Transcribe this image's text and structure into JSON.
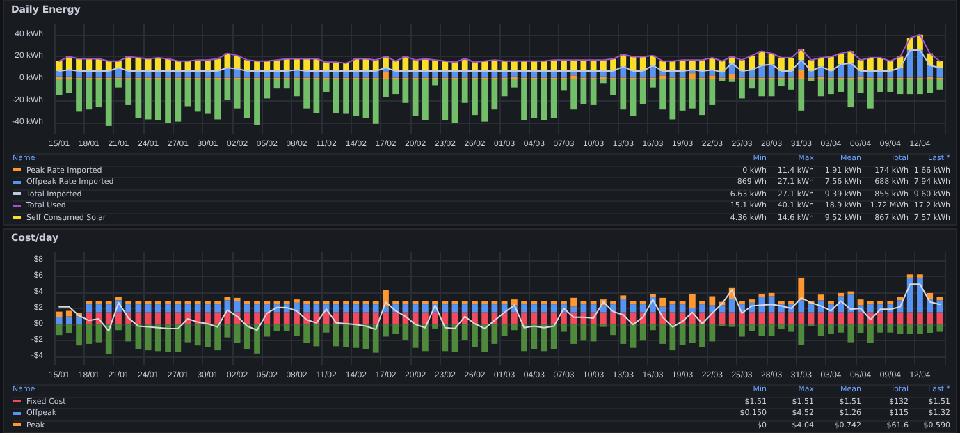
{
  "chart_data": [
    {
      "type": "bar",
      "title": "Daily Energy",
      "stacked": true,
      "grid": true,
      "legend": "bottom",
      "marker": "none",
      "categories": [
        "15/01",
        null,
        null,
        "18/01",
        null,
        null,
        "21/01",
        null,
        null,
        "24/01",
        null,
        null,
        "27/01",
        null,
        null,
        "30/01",
        null,
        null,
        "02/02",
        null,
        null,
        "05/02",
        null,
        null,
        "08/02",
        null,
        null,
        "11/02",
        null,
        null,
        "14/02",
        null,
        null,
        "17/02",
        null,
        null,
        "20/02",
        null,
        null,
        "23/02",
        null,
        null,
        "26/02",
        null,
        null,
        "01/03",
        null,
        null,
        "04/03",
        null,
        null,
        "07/03",
        null,
        null,
        "10/03",
        null,
        null,
        "13/03",
        null,
        null,
        "16/03",
        null,
        null,
        "19/03",
        null,
        null,
        "22/03",
        null,
        null,
        "25/03",
        null,
        null,
        "28/03",
        null,
        null,
        "31/03",
        null,
        null,
        "03/04",
        null,
        null,
        "06/04",
        null,
        null,
        "09/04",
        null,
        null,
        "12/04",
        null,
        null
      ],
      "ylim": [
        -50,
        50
      ],
      "yticks": [
        {
          "value": -40,
          "label": "-40 kWh"
        },
        {
          "value": -20,
          "label": "-20 kWh"
        },
        {
          "value": 0,
          "label": "0 kWh"
        },
        {
          "value": 20,
          "label": "20 kWh"
        },
        {
          "value": 40,
          "label": "40 kWh"
        }
      ],
      "series": [
        {
          "name": "Peak Rate Imported",
          "color": "#ff9830",
          "values": [
            2,
            2,
            1,
            1,
            1,
            1,
            1,
            1,
            1,
            1,
            1,
            1,
            1,
            1,
            1,
            1,
            1,
            1,
            1,
            1,
            1,
            1,
            1,
            1,
            1,
            1,
            1,
            1,
            1,
            1,
            1,
            1,
            1,
            6,
            1,
            1,
            1,
            1,
            1,
            1,
            1,
            1,
            1,
            1,
            1,
            1,
            2,
            1,
            1,
            1,
            1,
            1,
            3,
            1,
            1,
            2,
            1,
            1,
            1,
            1,
            1,
            3,
            1,
            1,
            5,
            1,
            3,
            1,
            4,
            1,
            1,
            1,
            1,
            1,
            1,
            8,
            1,
            2,
            1,
            1,
            1,
            2,
            1,
            1,
            1,
            1,
            1,
            1,
            2,
            1
          ]
        },
        {
          "name": "Offpeak Rate Imported",
          "color": "#5794f2",
          "values": [
            5,
            6,
            6,
            6,
            6,
            6,
            9,
            6,
            6,
            6,
            6,
            6,
            6,
            6,
            6,
            6,
            6,
            9,
            8,
            6,
            6,
            6,
            6,
            6,
            7,
            6,
            6,
            6,
            6,
            6,
            6,
            6,
            6,
            4,
            6,
            6,
            6,
            6,
            6,
            6,
            6,
            6,
            6,
            6,
            6,
            6,
            5,
            6,
            6,
            6,
            6,
            6,
            4,
            6,
            6,
            5,
            6,
            10,
            6,
            6,
            11,
            4,
            6,
            6,
            3,
            6,
            5,
            5,
            10,
            6,
            7,
            11,
            12,
            6,
            6,
            9,
            6,
            9,
            6,
            12,
            13,
            5,
            6,
            6,
            6,
            9,
            25,
            25,
            10,
            9
          ]
        },
        {
          "name": "Total Imported",
          "type": "line",
          "color": "#c0c8e0",
          "values": [
            7,
            8,
            7,
            7,
            7,
            7,
            10,
            7,
            7,
            7,
            7,
            7,
            7,
            7,
            7,
            7,
            7,
            10,
            9,
            7,
            7,
            7,
            7,
            7,
            8,
            7,
            7,
            7,
            7,
            7,
            7,
            7,
            7,
            10,
            7,
            7,
            7,
            7,
            7,
            7,
            7,
            7,
            7,
            7,
            7,
            7,
            7,
            7,
            7,
            7,
            7,
            7,
            7,
            7,
            7,
            7,
            7,
            11,
            7,
            7,
            12,
            7,
            7,
            7,
            8,
            7,
            8,
            6,
            14,
            7,
            8,
            12,
            13,
            7,
            7,
            17,
            7,
            11,
            7,
            13,
            14,
            7,
            7,
            7,
            7,
            10,
            26,
            26,
            12,
            10
          ]
        },
        {
          "name": "Total Used",
          "type": "line",
          "color": "#a352cc",
          "values": [
            16,
            20,
            18,
            18,
            18,
            16,
            16,
            20,
            19,
            18,
            19,
            18,
            16,
            16,
            17,
            17,
            18,
            23,
            21,
            17,
            16,
            16,
            17,
            18,
            18,
            18,
            18,
            15,
            15,
            14,
            18,
            18,
            17,
            20,
            16,
            20,
            17,
            18,
            17,
            16,
            15,
            18,
            15,
            16,
            17,
            16,
            16,
            16,
            16,
            16,
            17,
            17,
            17,
            17,
            17,
            17,
            18,
            22,
            20,
            20,
            21,
            16,
            16,
            17,
            17,
            17,
            19,
            16,
            20,
            17,
            21,
            25,
            23,
            19,
            19,
            27,
            17,
            19,
            20,
            23,
            25,
            17,
            19,
            19,
            16,
            20,
            37,
            40,
            23,
            16
          ]
        },
        {
          "name": "Self Consumed Solar",
          "color": "#fade2a",
          "values": [
            9,
            12,
            11,
            11,
            11,
            9,
            6,
            13,
            12,
            11,
            12,
            11,
            9,
            9,
            10,
            10,
            11,
            13,
            12,
            10,
            9,
            9,
            10,
            11,
            10,
            11,
            11,
            8,
            8,
            7,
            11,
            11,
            10,
            10,
            9,
            13,
            10,
            11,
            10,
            9,
            8,
            11,
            8,
            9,
            10,
            9,
            9,
            9,
            9,
            9,
            10,
            10,
            10,
            10,
            10,
            10,
            11,
            11,
            13,
            13,
            9,
            9,
            9,
            10,
            9,
            10,
            11,
            10,
            6,
            10,
            13,
            13,
            10,
            12,
            12,
            10,
            10,
            8,
            13,
            10,
            11,
            10,
            12,
            12,
            9,
            10,
            11,
            14,
            11,
            6
          ]
        },
        {
          "color": "#73bf69",
          "values": [
            -15,
            -13,
            -30,
            -28,
            -26,
            -43,
            -8,
            -24,
            -36,
            -37,
            -38,
            -40,
            -39,
            -25,
            -30,
            -32,
            -37,
            -19,
            -27,
            -36,
            -42,
            -18,
            -9,
            -9,
            -16,
            -27,
            -31,
            -12,
            -31,
            -32,
            -34,
            -36,
            -41,
            -17,
            -14,
            -22,
            -34,
            -38,
            -6,
            -38,
            -40,
            -22,
            -33,
            -39,
            -28,
            -16,
            -8,
            -38,
            -36,
            -38,
            -36,
            -11,
            -28,
            -23,
            -24,
            -4,
            -15,
            -28,
            -34,
            -23,
            -8,
            -28,
            -37,
            -29,
            -27,
            -33,
            -24,
            -2,
            -3,
            -18,
            -9,
            -16,
            -16,
            -7,
            -10,
            -29,
            -2,
            -16,
            -14,
            -12,
            -26,
            -13,
            -27,
            -12,
            -12,
            -14,
            -14,
            -14,
            -13,
            -10
          ]
        }
      ],
      "annotations": [
        "Name",
        "Min",
        "Max",
        "Mean",
        "Total",
        "Last *",
        "0 kWh",
        "11.4 kWh",
        "1.91 kWh",
        "174 kWh",
        "1.66 kWh",
        "869 Wh",
        "27.1 kWh",
        "7.56 kWh",
        "688 kWh",
        "7.94 kWh",
        "6.63 kWh",
        "27.1 kWh",
        "9.39 kWh",
        "855 kWh",
        "9.60 kWh",
        "15.1 kWh",
        "40.1 kWh",
        "18.9 kWh",
        "1.72 MWh",
        "17.2 kWh",
        "4.36 kWh",
        "14.6 kWh",
        "9.52 kWh",
        "867 kWh",
        "7.57 kWh"
      ]
    },
    {
      "type": "bar",
      "title": "Cost/day",
      "stacked": true,
      "grid": true,
      "legend": "bottom",
      "marker": "none",
      "categories": [
        "15/01",
        null,
        null,
        "18/01",
        null,
        null,
        "21/01",
        null,
        null,
        "24/01",
        null,
        null,
        "27/01",
        null,
        null,
        "30/01",
        null,
        null,
        "02/02",
        null,
        null,
        "05/02",
        null,
        null,
        "08/02",
        null,
        null,
        "11/02",
        null,
        null,
        "14/02",
        null,
        null,
        "17/02",
        null,
        null,
        "20/02",
        null,
        null,
        "23/02",
        null,
        null,
        "26/02",
        null,
        null,
        "01/03",
        null,
        null,
        "04/03",
        null,
        null,
        "07/03",
        null,
        null,
        "10/03",
        null,
        null,
        "13/03",
        null,
        null,
        "16/03",
        null,
        null,
        "19/03",
        null,
        null,
        "22/03",
        null,
        null,
        "25/03",
        null,
        null,
        "28/03",
        null,
        null,
        "31/03",
        null,
        null,
        "03/04",
        null,
        null,
        "06/04",
        null,
        null,
        "09/04",
        null,
        null,
        "12/04",
        null,
        null
      ],
      "ylim": [
        -5,
        9
      ],
      "yticks": [
        {
          "value": -4,
          "label": "-$4"
        },
        {
          "value": -2,
          "label": "-$2"
        },
        {
          "value": 0,
          "label": "$0"
        },
        {
          "value": 2,
          "label": "$2"
        },
        {
          "value": 4,
          "label": "$4"
        },
        {
          "value": 6,
          "label": "$6"
        },
        {
          "value": 8,
          "label": "$8"
        }
      ],
      "series": [
        {
          "name": "Fixed Cost",
          "color": "#f2495c",
          "values": [
            null,
            null,
            null,
            1.51,
            1.51,
            1.51,
            1.51,
            1.51,
            1.51,
            1.51,
            1.51,
            1.51,
            1.51,
            1.51,
            1.51,
            1.51,
            1.51,
            1.51,
            1.51,
            1.51,
            1.51,
            1.51,
            1.51,
            1.51,
            1.51,
            1.51,
            1.51,
            1.51,
            1.51,
            1.51,
            1.51,
            1.51,
            1.51,
            1.51,
            1.51,
            1.51,
            1.51,
            1.51,
            1.51,
            1.51,
            1.51,
            1.51,
            1.51,
            1.51,
            1.51,
            1.51,
            1.51,
            1.51,
            1.51,
            1.51,
            1.51,
            1.51,
            1.51,
            1.51,
            1.51,
            1.51,
            1.51,
            1.51,
            1.51,
            1.51,
            1.51,
            1.51,
            1.51,
            1.51,
            1.51,
            1.51,
            1.51,
            1.51,
            1.51,
            1.51,
            1.51,
            1.51,
            1.51,
            1.51,
            1.51,
            1.51,
            1.51,
            1.51,
            1.51,
            1.51,
            1.51,
            1.51,
            1.51,
            1.51,
            1.51,
            1.51,
            1.51,
            1.51,
            1.51,
            1.51
          ]
        },
        {
          "name": "Offpeak",
          "color": "#5794f2",
          "values": [
            0.9,
            1.0,
            1.0,
            1.0,
            1.0,
            1.0,
            1.5,
            1.0,
            1.0,
            1.0,
            1.0,
            1.0,
            1.0,
            1.0,
            1.0,
            1.0,
            1.0,
            1.5,
            1.4,
            1.0,
            1.0,
            1.0,
            1.0,
            1.0,
            1.2,
            1.0,
            1.0,
            1.0,
            1.0,
            1.0,
            1.0,
            1.0,
            1.0,
            0.7,
            1.0,
            1.0,
            1.0,
            1.0,
            1.0,
            1.0,
            1.0,
            1.0,
            1.0,
            1.0,
            1.0,
            1.0,
            0.9,
            1.0,
            1.0,
            1.0,
            1.0,
            1.0,
            0.7,
            1.0,
            1.0,
            0.9,
            1.0,
            1.7,
            1.0,
            1.0,
            1.9,
            0.7,
            1.0,
            1.0,
            0.5,
            1.0,
            0.9,
            0.9,
            1.7,
            1.0,
            1.2,
            1.9,
            2.0,
            1.0,
            1.0,
            1.5,
            1.0,
            1.5,
            1.0,
            2.0,
            2.2,
            0.9,
            1.0,
            1.0,
            1.0,
            1.5,
            4.3,
            4.3,
            1.7,
            1.5
          ]
        },
        {
          "name": "Peak",
          "color": "#ff9830",
          "values": [
            0.7,
            0.7,
            0.4,
            0.4,
            0.4,
            0.4,
            0.4,
            0.4,
            0.4,
            0.4,
            0.4,
            0.4,
            0.4,
            0.4,
            0.4,
            0.4,
            0.4,
            0.4,
            0.4,
            0.4,
            0.4,
            0.4,
            0.4,
            0.4,
            0.4,
            0.4,
            0.4,
            0.4,
            0.4,
            0.4,
            0.4,
            0.4,
            0.4,
            2.1,
            0.4,
            0.4,
            0.4,
            0.4,
            0.4,
            0.4,
            0.4,
            0.4,
            0.4,
            0.4,
            0.4,
            0.4,
            0.7,
            0.4,
            0.4,
            0.4,
            0.4,
            0.4,
            1.1,
            0.4,
            0.4,
            0.7,
            0.4,
            0.4,
            0.4,
            0.4,
            0.4,
            1.1,
            0.4,
            0.4,
            1.8,
            0.4,
            1.1,
            0.4,
            1.4,
            0.4,
            0.4,
            0.4,
            0.4,
            0.4,
            0.4,
            2.8,
            0.4,
            0.7,
            0.4,
            0.4,
            0.4,
            0.7,
            0.4,
            0.4,
            0.4,
            0.4,
            0.4,
            0.4,
            0.7,
            0.4
          ]
        },
        {
          "type": "line",
          "color": "#d8d9e0",
          "values": [
            2.2,
            2.2,
            1.1,
            0.5,
            0.7,
            -0.8,
            2.7,
            0.8,
            -0.2,
            -0.3,
            -0.4,
            -0.5,
            -0.5,
            0.7,
            0.3,
            0.1,
            -0.3,
            1.8,
            1.0,
            -0.2,
            -0.7,
            1.4,
            2.1,
            2.1,
            1.7,
            0.6,
            0.2,
            1.9,
            0.2,
            0.1,
            0.0,
            -0.2,
            -0.6,
            2.8,
            1.7,
            1.0,
            0.0,
            -0.4,
            2.4,
            -0.4,
            -0.5,
            1.0,
            0.1,
            -0.5,
            0.5,
            1.5,
            2.4,
            -0.4,
            -0.2,
            -0.4,
            -0.2,
            2.0,
            0.9,
            0.9,
            0.8,
            2.8,
            1.6,
            1.2,
            0.0,
            0.9,
            3.1,
            0.9,
            -0.3,
            0.4,
            1.5,
            0.1,
            1.4,
            2.6,
            4.3,
            1.4,
            2.3,
            2.4,
            2.5,
            2.3,
            2.0,
            3.3,
            2.7,
            2.3,
            1.7,
            2.9,
            1.9,
            2.0,
            0.6,
            1.9,
            1.9,
            2.2,
            5.0,
            5.0,
            2.8,
            2.5
          ]
        },
        {
          "color": "#4f8a3c",
          "values": [
            -1.3,
            -1.1,
            -2.6,
            -2.4,
            -2.2,
            -3.7,
            -0.7,
            -2.1,
            -3.1,
            -3.2,
            -3.3,
            -3.4,
            -3.4,
            -2.2,
            -2.6,
            -2.8,
            -3.2,
            -1.6,
            -2.3,
            -3.1,
            -3.6,
            -1.5,
            -0.8,
            -0.8,
            -1.4,
            -2.3,
            -2.7,
            -1.0,
            -2.7,
            -2.8,
            -2.9,
            -3.1,
            -3.5,
            -1.5,
            -1.2,
            -1.9,
            -2.9,
            -3.3,
            -0.5,
            -3.3,
            -3.4,
            -1.9,
            -2.8,
            -3.4,
            -2.4,
            -1.4,
            -0.7,
            -3.3,
            -3.1,
            -3.3,
            -3.1,
            -0.9,
            -2.4,
            -2.0,
            -2.1,
            -0.3,
            -1.3,
            -2.4,
            -2.9,
            -2.0,
            -0.7,
            -2.4,
            -3.2,
            -2.5,
            -2.3,
            -2.8,
            -2.1,
            -0.2,
            -0.3,
            -1.5,
            -0.8,
            -1.4,
            -1.4,
            -0.6,
            -0.9,
            -2.5,
            -0.2,
            -1.4,
            -1.2,
            -1.0,
            -2.2,
            -1.1,
            -2.3,
            -1.0,
            -1.0,
            -1.2,
            -1.2,
            -1.2,
            -1.1,
            -0.9
          ]
        }
      ],
      "annotations": [
        "Name",
        "Min",
        "Max",
        "Mean",
        "Total",
        "Last *",
        "$1.51",
        "$1.51",
        "$1.51",
        "$132",
        "$1.51",
        "$0.150",
        "$4.52",
        "$1.26",
        "$115",
        "$1.32",
        "$0",
        "$4.04",
        "$0.742",
        "$61.6",
        "$0.590"
      ]
    }
  ]
}
